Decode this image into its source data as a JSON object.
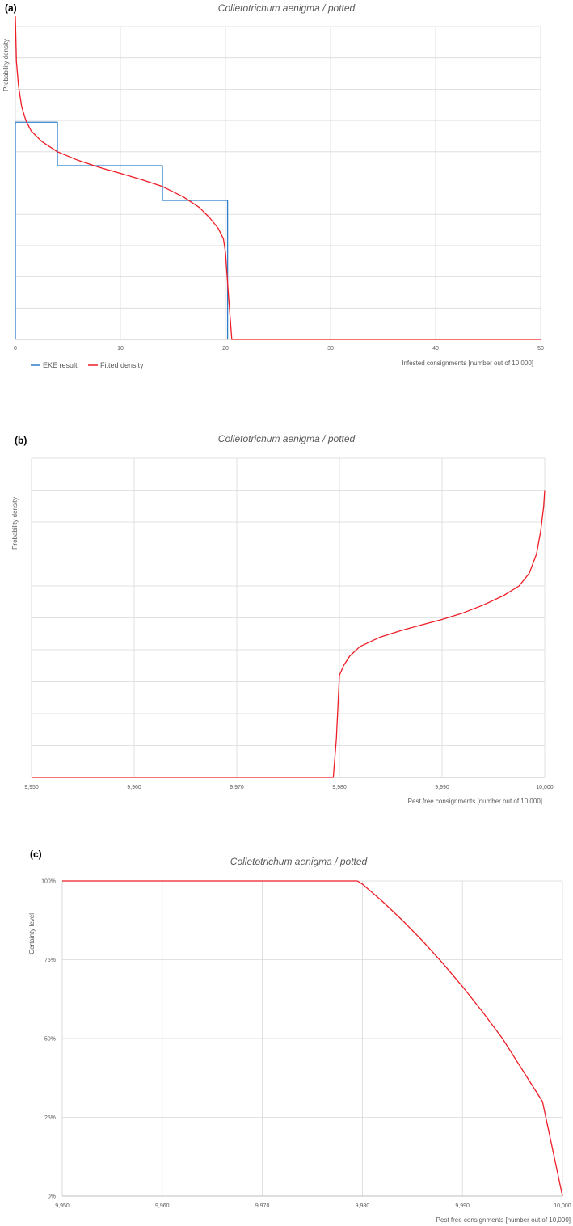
{
  "colors": {
    "eke": "#2f7ec9",
    "fitted": "#ee1c25",
    "grid": "#d9d9d9",
    "text": "#595959"
  },
  "chart_data": [
    {
      "panel": "(a)",
      "type": "line",
      "title": "Colletotrichum aenigma / potted",
      "xlabel": "Infested consignments [number out of 10,000]",
      "ylabel": "Probability density",
      "xlim": [
        0,
        50
      ],
      "xticks": [
        "0",
        "10",
        "20",
        "30",
        "40",
        "50"
      ],
      "ylim": [
        0,
        0.09
      ],
      "grid": true,
      "legend_position": "bottom-left",
      "series": [
        {
          "name": "EKE result",
          "kind": "step",
          "x": [
            0,
            0,
            4,
            4,
            14,
            14,
            20.2,
            20.2
          ],
          "y": [
            0,
            0.0625,
            0.0625,
            0.05,
            0.05,
            0.04,
            0.04,
            0
          ]
        },
        {
          "name": "Fitted density",
          "kind": "line",
          "x": [
            0,
            0.1,
            0.3,
            0.6,
            1,
            1.5,
            2.5,
            4,
            6,
            8,
            10,
            12,
            14,
            16,
            17.5,
            18.5,
            19.3,
            19.8,
            20.0,
            20.3,
            20.6,
            25,
            30,
            40,
            50
          ],
          "y": [
            0.093,
            0.08,
            0.073,
            0.067,
            0.063,
            0.06,
            0.057,
            0.054,
            0.0515,
            0.0495,
            0.0478,
            0.046,
            0.044,
            0.041,
            0.038,
            0.035,
            0.032,
            0.029,
            0.025,
            0.012,
            0,
            0,
            0,
            0,
            0
          ]
        }
      ]
    },
    {
      "panel": "(b)",
      "type": "line",
      "title": "Colletotrichum aenigma / potted",
      "xlabel": "Pest free consignments [number out of 10,000]",
      "ylabel": "Probability density",
      "xlim": [
        9950,
        10000
      ],
      "xticks": [
        "9,950",
        "9,960",
        "9,970",
        "9,980",
        "9,990",
        "10,000"
      ],
      "ylim": [
        0,
        0.1
      ],
      "grid": true,
      "series": [
        {
          "name": "",
          "kind": "line",
          "x": [
            9950,
            9960,
            9970,
            9979.4,
            9979.7,
            9980.0,
            9980.4,
            9981,
            9982,
            9984,
            9986,
            9988,
            9990,
            9992,
            9994,
            9996,
            9997.5,
            9998.5,
            9999.2,
            9999.6,
            9999.9,
            10000
          ],
          "y": [
            0,
            0,
            0,
            0,
            0.012,
            0.032,
            0.035,
            0.038,
            0.041,
            0.044,
            0.046,
            0.0478,
            0.0495,
            0.0515,
            0.054,
            0.057,
            0.06,
            0.064,
            0.07,
            0.077,
            0.085,
            0.09
          ]
        }
      ]
    },
    {
      "panel": "(c)",
      "type": "line",
      "title": "Colletotrichum aenigma / potted",
      "xlabel": "Pest free consignments [number out of 10,000]",
      "ylabel": "Certainty level",
      "xlim": [
        9950,
        10000
      ],
      "xticks": [
        "9,950",
        "9,960",
        "9,970",
        "9,980",
        "9,990",
        "10,000"
      ],
      "ylim": [
        0,
        1
      ],
      "yticks": [
        "0%",
        "25%",
        "50%",
        "75%",
        "100%"
      ],
      "grid": true,
      "series": [
        {
          "name": "",
          "kind": "line",
          "x": [
            9950,
            9960,
            9970,
            9979.5,
            9980,
            9982,
            9984,
            9986,
            9988,
            9990,
            9992,
            9994,
            9996,
            9998,
            10000
          ],
          "y": [
            1,
            1,
            1,
            1,
            0.99,
            0.935,
            0.875,
            0.81,
            0.74,
            0.665,
            0.585,
            0.5,
            0.4,
            0.3,
            0
          ]
        }
      ]
    }
  ]
}
